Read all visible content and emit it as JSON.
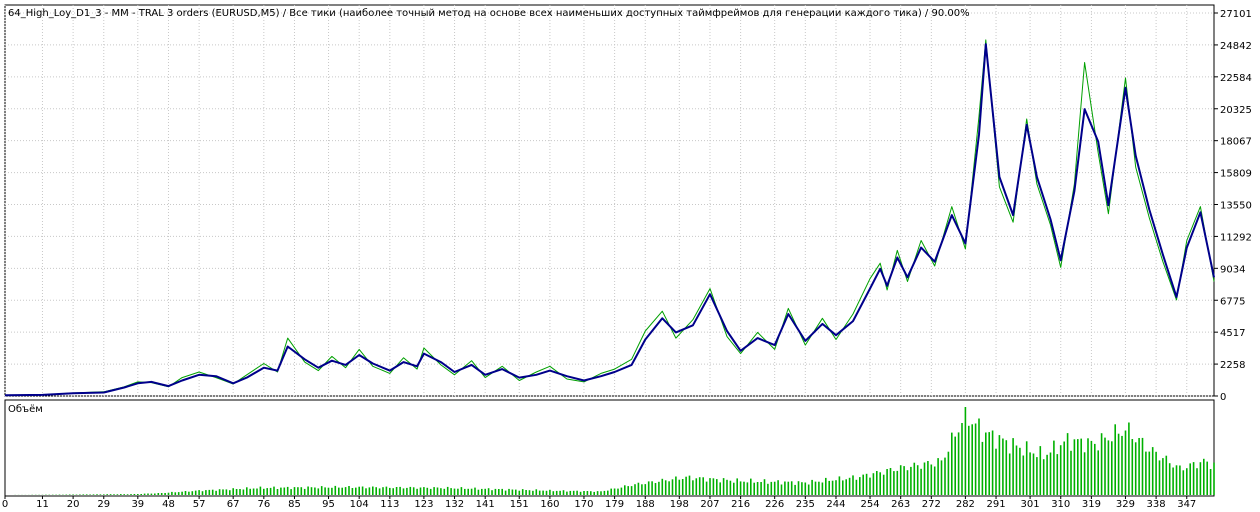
{
  "header": {
    "title": "64_High_Loy_D1_3 - MM - TRAL 3 orders (EURUSD,M5) / Все тики (наиболее точный метод на основе всех наименьших доступных таймфреймов для генерации каждого тика) / 90.00%"
  },
  "volume_panel": {
    "label": "Объём"
  },
  "colors": {
    "balance": "#00008b",
    "equity": "#00a000",
    "volume": "#00b000",
    "grid": "#c8c8c8",
    "frame": "#000000"
  },
  "chart_data": [
    {
      "type": "line",
      "title": "64_High_Loy_D1_3 - MM - TRAL 3 orders (EURUSD,M5) / Все тики (наиболее точный метод на основе всех наименьших доступных таймфреймов для генерации каждого тика) / 90.00%",
      "ylim": [
        0,
        27101
      ],
      "xlim": [
        0,
        355
      ],
      "y_ticks": [
        "0",
        "2258",
        "4517",
        "6775",
        "9034",
        "11292",
        "13550",
        "15809",
        "18067",
        "20325",
        "22584",
        "24842",
        "27101"
      ],
      "x_ticks": [
        "0",
        "11",
        "20",
        "29",
        "39",
        "48",
        "57",
        "67",
        "76",
        "85",
        "95",
        "104",
        "113",
        "123",
        "132",
        "141",
        "151",
        "160",
        "170",
        "179",
        "188",
        "198",
        "207",
        "216",
        "226",
        "235",
        "244",
        "254",
        "263",
        "272",
        "282",
        "291",
        "301",
        "310",
        "319",
        "329",
        "338",
        "347"
      ],
      "grid": true,
      "series": [
        {
          "name": "",
          "role": "balance",
          "x": [
            0,
            11,
            20,
            29,
            35,
            39,
            43,
            48,
            52,
            57,
            62,
            67,
            71,
            76,
            80,
            83,
            88,
            92,
            96,
            100,
            104,
            108,
            113,
            117,
            121,
            123,
            128,
            132,
            137,
            141,
            146,
            151,
            156,
            160,
            165,
            170,
            175,
            179,
            184,
            188,
            193,
            197,
            202,
            207,
            212,
            216,
            221,
            226,
            230,
            235,
            240,
            244,
            249,
            254,
            257,
            259,
            262,
            265,
            269,
            273,
            278,
            282,
            286,
            288,
            292,
            296,
            300,
            303,
            307,
            310,
            314,
            317,
            321,
            324,
            329,
            332,
            336,
            340,
            344,
            347,
            351,
            355
          ],
          "y": [
            60,
            80,
            200,
            250,
            600,
            900,
            1000,
            700,
            1100,
            1500,
            1400,
            900,
            1300,
            2000,
            1800,
            3500,
            2600,
            2000,
            2500,
            2200,
            2900,
            2300,
            1800,
            2400,
            2100,
            3000,
            2400,
            1700,
            2200,
            1500,
            1900,
            1300,
            1500,
            1800,
            1400,
            1100,
            1400,
            1700,
            2200,
            4000,
            5500,
            4500,
            5000,
            7200,
            4600,
            3200,
            4100,
            3600,
            5800,
            3900,
            5100,
            4300,
            5300,
            7600,
            9000,
            7800,
            9800,
            8400,
            10500,
            9500,
            12800,
            10800,
            18500,
            24900,
            15500,
            12800,
            19200,
            15500,
            12500,
            9600,
            14500,
            20300,
            18000,
            13500,
            21800,
            17000,
            13200,
            10000,
            7000,
            10500,
            13000,
            8400
          ]
        },
        {
          "name": "",
          "role": "equity",
          "x": [
            0,
            11,
            20,
            29,
            35,
            39,
            43,
            48,
            52,
            57,
            62,
            67,
            71,
            76,
            80,
            83,
            88,
            92,
            96,
            100,
            104,
            108,
            113,
            117,
            121,
            123,
            128,
            132,
            137,
            141,
            146,
            151,
            156,
            160,
            165,
            170,
            175,
            179,
            184,
            188,
            193,
            197,
            202,
            207,
            212,
            216,
            221,
            226,
            230,
            235,
            240,
            244,
            249,
            254,
            257,
            259,
            262,
            265,
            269,
            273,
            278,
            282,
            286,
            288,
            292,
            296,
            300,
            303,
            307,
            310,
            314,
            317,
            321,
            324,
            329,
            332,
            336,
            340,
            344,
            347,
            351,
            355
          ],
          "y": [
            60,
            90,
            210,
            300,
            650,
            1000,
            950,
            650,
            1300,
            1700,
            1300,
            850,
            1500,
            2300,
            1700,
            4100,
            2400,
            1800,
            2800,
            2000,
            3300,
            2100,
            1600,
            2700,
            1900,
            3400,
            2200,
            1500,
            2500,
            1300,
            2100,
            1100,
            1700,
            2100,
            1200,
            1000,
            1600,
            1900,
            2600,
            4600,
            6000,
            4100,
            5400,
            7600,
            4200,
            3000,
            4500,
            3300,
            6200,
            3600,
            5500,
            4000,
            5800,
            8300,
            9400,
            7500,
            10300,
            8100,
            11000,
            9200,
            13400,
            10400,
            19800,
            25200,
            14800,
            12300,
            19600,
            15000,
            12100,
            9100,
            15000,
            23600,
            17200,
            12900,
            22500,
            16200,
            12600,
            9500,
            6800,
            11000,
            13400,
            8100
          ]
        }
      ]
    },
    {
      "type": "bar",
      "title": "Объём",
      "x_range": [
        0,
        355
      ],
      "volume_level_fractions": [
        {
          "x": 0,
          "v": 0.0
        },
        {
          "x": 38,
          "v": 0.01
        },
        {
          "x": 45,
          "v": 0.02
        },
        {
          "x": 57,
          "v": 0.05
        },
        {
          "x": 75,
          "v": 0.08
        },
        {
          "x": 100,
          "v": 0.09
        },
        {
          "x": 130,
          "v": 0.08
        },
        {
          "x": 160,
          "v": 0.05
        },
        {
          "x": 175,
          "v": 0.04
        },
        {
          "x": 185,
          "v": 0.12
        },
        {
          "x": 200,
          "v": 0.2
        },
        {
          "x": 215,
          "v": 0.16
        },
        {
          "x": 235,
          "v": 0.14
        },
        {
          "x": 250,
          "v": 0.2
        },
        {
          "x": 262,
          "v": 0.3
        },
        {
          "x": 275,
          "v": 0.38
        },
        {
          "x": 282,
          "v": 0.92
        },
        {
          "x": 287,
          "v": 0.72
        },
        {
          "x": 295,
          "v": 0.58
        },
        {
          "x": 305,
          "v": 0.45
        },
        {
          "x": 312,
          "v": 0.62
        },
        {
          "x": 320,
          "v": 0.58
        },
        {
          "x": 329,
          "v": 0.75
        },
        {
          "x": 336,
          "v": 0.52
        },
        {
          "x": 345,
          "v": 0.3
        },
        {
          "x": 352,
          "v": 0.38
        },
        {
          "x": 355,
          "v": 0.34
        }
      ]
    }
  ]
}
